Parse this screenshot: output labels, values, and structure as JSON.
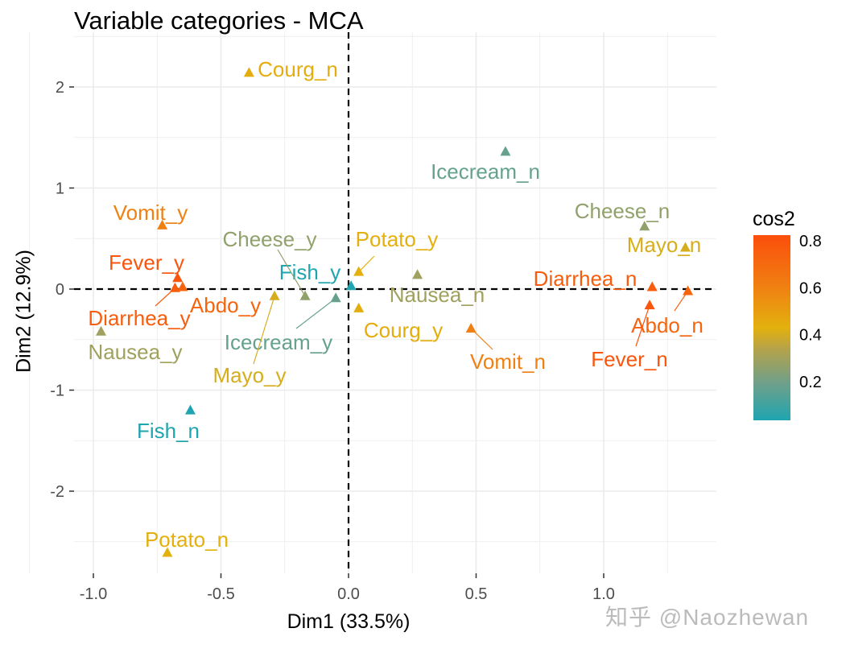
{
  "chart_data": {
    "type": "scatter",
    "title": "Variable categories - MCA",
    "xlabel": "Dim1 (33.5%)",
    "ylabel": "Dim2 (12.9%)",
    "xlim": [
      -1.08,
      1.44
    ],
    "ylim": [
      -2.83,
      2.55
    ],
    "xticks": [
      -1.0,
      -0.5,
      0.0,
      0.5,
      1.0
    ],
    "xtick_labels": [
      "-1.0",
      "-0.5",
      "0.0",
      "0.5",
      "1.0"
    ],
    "yticks": [
      -2,
      -1,
      0,
      1,
      2
    ],
    "ytick_labels": [
      "-2",
      "-1",
      "0",
      "1",
      "2"
    ],
    "grid": true,
    "reference_lines": {
      "x": 0,
      "y": 0,
      "style": "dashed"
    },
    "legend": {
      "title": "cos2",
      "placement": "right",
      "ticks": [
        "0.2",
        "0.4",
        "0.6",
        "0.8"
      ],
      "range": [
        0.03,
        0.82
      ]
    },
    "color_gradient": [
      "#00AFBB",
      "#E7B800",
      "#FC4E07"
    ],
    "points": [
      {
        "label": "Courg_n",
        "x": -0.39,
        "y": 2.14,
        "cos2": 0.44
      },
      {
        "label": "Icecream_n",
        "x": 0.615,
        "y": 1.36,
        "cos2": 0.17
      },
      {
        "label": "Cheese_n",
        "x": 1.16,
        "y": 0.62,
        "cos2": 0.26
      },
      {
        "label": "Mayo_n",
        "x": 1.32,
        "y": 0.41,
        "cos2": 0.4
      },
      {
        "label": "Diarrhea_n",
        "x": 1.19,
        "y": 0.02,
        "cos2": 0.76
      },
      {
        "label": "Abdo_n",
        "x": 1.33,
        "y": -0.02,
        "cos2": 0.72
      },
      {
        "label": "Fever_n",
        "x": 1.18,
        "y": -0.16,
        "cos2": 0.79
      },
      {
        "label": "Vomit_n",
        "x": 0.48,
        "y": -0.39,
        "cos2": 0.6
      },
      {
        "label": "Nausea_n",
        "x": 0.27,
        "y": 0.14,
        "cos2": 0.29
      },
      {
        "label": "Potato_y",
        "x": 0.04,
        "y": 0.17,
        "cos2": 0.43
      },
      {
        "label": "Courg_y",
        "x": 0.04,
        "y": -0.19,
        "cos2": 0.44
      },
      {
        "label": "Fish_y",
        "x": 0.01,
        "y": 0.03,
        "cos2": 0.03
      },
      {
        "label": "Icecream_y",
        "x": -0.05,
        "y": -0.09,
        "cos2": 0.17
      },
      {
        "label": "Cheese_y",
        "x": -0.17,
        "y": -0.07,
        "cos2": 0.26
      },
      {
        "label": "Mayo_y",
        "x": -0.29,
        "y": -0.07,
        "cos2": 0.4
      },
      {
        "label": "Vomit_y",
        "x": -0.73,
        "y": 0.63,
        "cos2": 0.6
      },
      {
        "label": "Fever_y",
        "x": -0.67,
        "y": 0.11,
        "cos2": 0.79
      },
      {
        "label": "Diarrhea_y",
        "x": -0.68,
        "y": 0.01,
        "cos2": 0.76
      },
      {
        "label": "Abdo_y",
        "x": -0.65,
        "y": 0.02,
        "cos2": 0.72
      },
      {
        "label": "Nausea_y",
        "x": -0.97,
        "y": -0.42,
        "cos2": 0.29
      },
      {
        "label": "Fish_n",
        "x": -0.62,
        "y": -1.2,
        "cos2": 0.03
      },
      {
        "label": "Potato_n",
        "x": -0.71,
        "y": -2.61,
        "cos2": 0.43
      }
    ]
  },
  "watermark": "知乎 @Naozhewan"
}
